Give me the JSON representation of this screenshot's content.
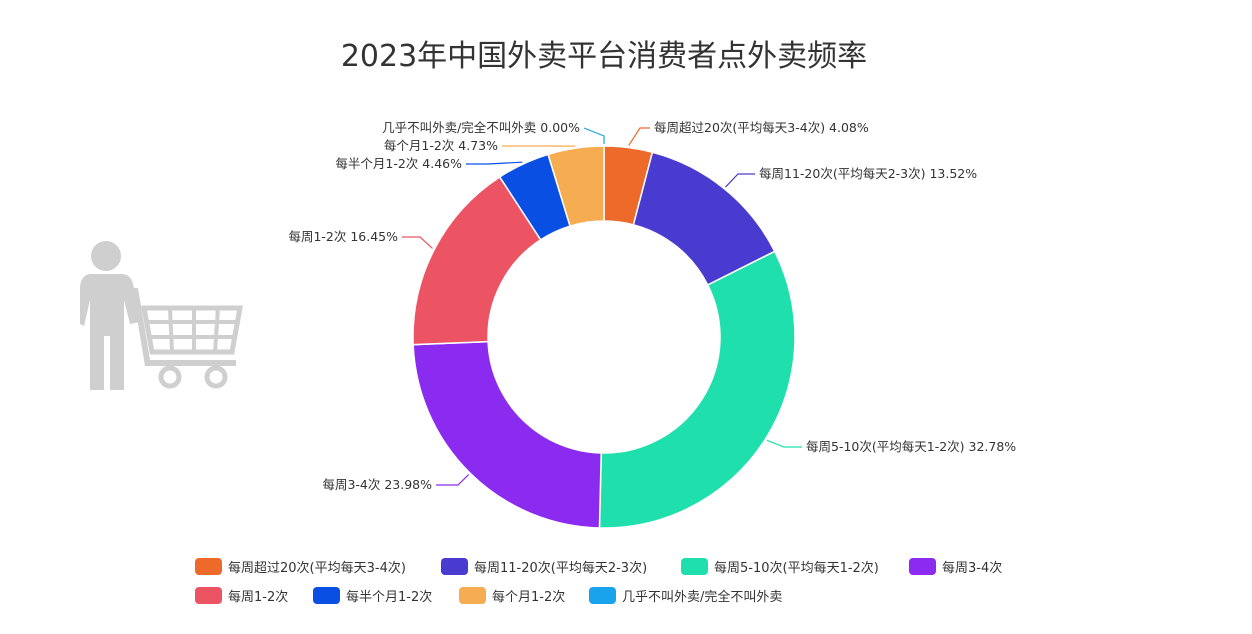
{
  "chart_data": {
    "type": "pie",
    "title": "2023年中国外卖平台消费者点外卖频率",
    "donut": true,
    "legend_position": "bottom",
    "slices": [
      {
        "label": "每周超过20次(平均每天3-4次)",
        "value": 4.08,
        "value_text": "4.08%",
        "color": "#ee6a2a"
      },
      {
        "label": "每周11-20次(平均每天2-3次)",
        "value": 13.52,
        "value_text": "13.52%",
        "color": "#4a3bd0"
      },
      {
        "label": "每周5-10次(平均每天1-2次)",
        "value": 32.78,
        "value_text": "32.78%",
        "color": "#1fe0ad"
      },
      {
        "label": "每周3-4次",
        "value": 23.98,
        "value_text": "23.98%",
        "color": "#8a2bef"
      },
      {
        "label": "每周1-2次",
        "value": 16.45,
        "value_text": "16.45%",
        "color": "#ec5464"
      },
      {
        "label": "每半个月1-2次",
        "value": 4.46,
        "value_text": "4.46%",
        "color": "#0a4fe3"
      },
      {
        "label": "每个月1-2次",
        "value": 4.73,
        "value_text": "4.73%",
        "color": "#f6ac51"
      },
      {
        "label": "几乎不叫外卖/完全不叫外卖",
        "value": 0.0,
        "value_text": "0.00%",
        "color": "#19a3ec"
      }
    ]
  },
  "decoration": {
    "icon": "person-with-shopping-cart-icon",
    "icon_color": "#cfcfcf"
  }
}
